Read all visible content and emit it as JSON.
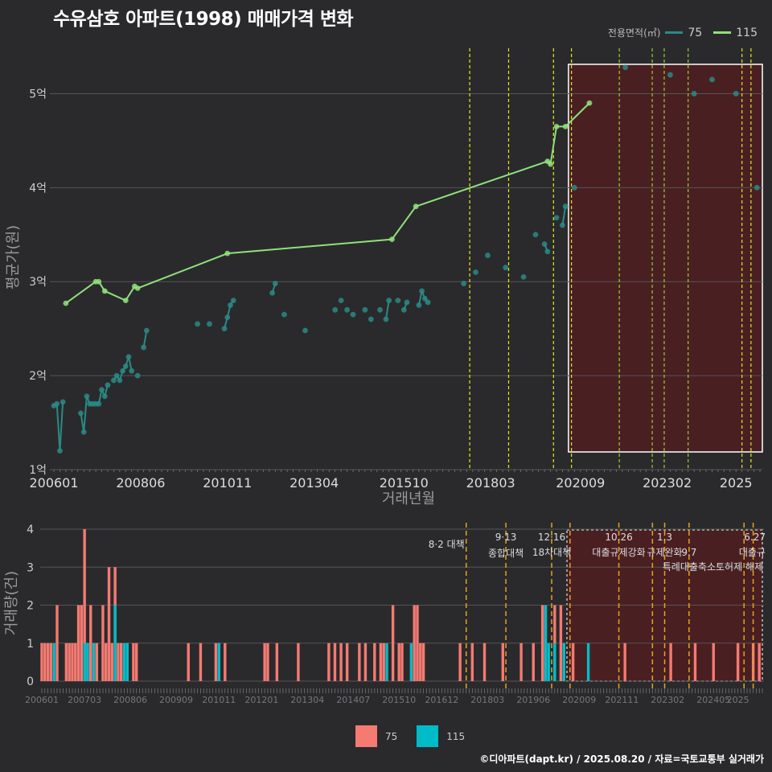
{
  "title": "수유삼호 아파트(1998) 매매가격 변화",
  "credit": "©디아파트(dapt.kr) / 2025.08.20 / 자료=국토교통부 실거래가",
  "colors": {
    "bg": "#2a2a2c",
    "grid": "#555557",
    "s75": "#2a8a86",
    "s115": "#90e07c",
    "bar75": "#f47a72",
    "bar115": "#00bcc8",
    "vline": "#e6e61f",
    "vline2": "#e6a21f",
    "highlight": "#4a1f22"
  },
  "legend_top": {
    "title": "전용면적(㎡)",
    "items": [
      "75",
      "115"
    ]
  },
  "legend_bottom": {
    "items": [
      "75",
      "115"
    ]
  },
  "chart_data": [
    {
      "type": "line",
      "xlabel": "거래년월",
      "ylabel": "평균가(원)",
      "x_ticks": [
        "200601",
        "200806",
        "201011",
        "201304",
        "201510",
        "201803",
        "202009",
        "202302",
        "2025"
      ],
      "y_ticks": [
        "1억",
        "2억",
        "3억",
        "4억",
        "5억"
      ],
      "ylim": [
        1.0,
        5.5
      ],
      "series": [
        {
          "name": "75",
          "points": [
            [
              "2006-01",
              1.68
            ],
            [
              "2006-02",
              1.7
            ],
            [
              "2006-03",
              1.2
            ],
            [
              "2006-04",
              1.72
            ],
            [
              "2006-10",
              1.6
            ],
            [
              "2006-11",
              1.4
            ],
            [
              "2006-12",
              1.78
            ],
            [
              "2007-01",
              1.7
            ],
            [
              "2007-02",
              1.7
            ],
            [
              "2007-03",
              1.7
            ],
            [
              "2007-04",
              1.7
            ],
            [
              "2007-05",
              1.85
            ],
            [
              "2007-06",
              1.78
            ],
            [
              "2007-07",
              1.9
            ],
            [
              "2007-09",
              1.95
            ],
            [
              "2007-10",
              2.0
            ],
            [
              "2007-11",
              1.95
            ],
            [
              "2007-12",
              2.05
            ],
            [
              "2008-01",
              2.1
            ],
            [
              "2008-02",
              2.2
            ],
            [
              "2008-03",
              2.05
            ],
            [
              "2008-05",
              2.0
            ],
            [
              "2008-07",
              2.3
            ],
            [
              "2008-08",
              2.48
            ],
            [
              "2010-01",
              2.55
            ],
            [
              "2010-05",
              2.55
            ],
            [
              "2010-10",
              2.5
            ],
            [
              "2010-11",
              2.62
            ],
            [
              "2010-12",
              2.75
            ],
            [
              "2011-01",
              2.8
            ],
            [
              "2012-02",
              2.88
            ],
            [
              "2012-03",
              2.98
            ],
            [
              "2012-06",
              2.65
            ],
            [
              "2013-01",
              2.48
            ],
            [
              "2013-11",
              2.7
            ],
            [
              "2014-01",
              2.8
            ],
            [
              "2014-03",
              2.7
            ],
            [
              "2014-05",
              2.65
            ],
            [
              "2014-09",
              2.7
            ],
            [
              "2014-11",
              2.6
            ],
            [
              "2015-02",
              2.7
            ],
            [
              "2015-04",
              2.6
            ],
            [
              "2015-05",
              2.8
            ],
            [
              "2015-08",
              2.8
            ],
            [
              "2015-10",
              2.7
            ],
            [
              "2015-11",
              2.78
            ],
            [
              "2016-03",
              2.75
            ],
            [
              "2016-04",
              2.9
            ],
            [
              "2016-05",
              2.82
            ],
            [
              "2016-06",
              2.78
            ],
            [
              "2017-06",
              2.98
            ],
            [
              "2017-10",
              3.1
            ],
            [
              "2018-02",
              3.28
            ],
            [
              "2018-08",
              3.15
            ],
            [
              "2019-02",
              3.05
            ],
            [
              "2019-06",
              3.5
            ],
            [
              "2019-09",
              3.4
            ],
            [
              "2019-10",
              3.32
            ],
            [
              "2020-01",
              3.68
            ],
            [
              "2020-03",
              3.6
            ],
            [
              "2020-04",
              3.8
            ],
            [
              "2020-07",
              4.0
            ],
            [
              "2021-12",
              5.28
            ],
            [
              "2023-03",
              5.2
            ],
            [
              "2023-11",
              5.0
            ],
            [
              "2024-05",
              5.15
            ],
            [
              "2025-01",
              5.0
            ],
            [
              "2025-08",
              4.0
            ]
          ]
        },
        {
          "name": "115",
          "points": [
            [
              "2006-05",
              2.77
            ],
            [
              "2007-03",
              3.0
            ],
            [
              "2007-04",
              3.0
            ],
            [
              "2007-06",
              2.9
            ],
            [
              "2008-01",
              2.8
            ],
            [
              "2008-04",
              2.95
            ],
            [
              "2008-05",
              2.93
            ],
            [
              "2010-11",
              3.3
            ],
            [
              "2015-06",
              3.45
            ],
            [
              "2016-02",
              3.8
            ],
            [
              "2019-10",
              4.28
            ],
            [
              "2019-11",
              4.25
            ],
            [
              "2020-01",
              4.65
            ],
            [
              "2020-04",
              4.65
            ],
            [
              "2020-12",
              4.9
            ]
          ]
        }
      ]
    },
    {
      "type": "bar",
      "ylabel": "거래량(건)",
      "x_ticks": [
        "200601",
        "200703",
        "200806",
        "200909",
        "201011",
        "201201",
        "201304",
        "201407",
        "201510",
        "201612",
        "201803",
        "201906",
        "202009",
        "202111",
        "202302",
        "202405",
        "2025"
      ],
      "y_ticks": [
        "0",
        "1",
        "2",
        "3",
        "4"
      ],
      "ylim": [
        0,
        4
      ],
      "series": [
        {
          "name": "75",
          "points": [
            [
              "2006-01",
              1
            ],
            [
              "2006-02",
              1
            ],
            [
              "2006-03",
              1
            ],
            [
              "2006-04",
              1
            ],
            [
              "2006-06",
              2
            ],
            [
              "2006-09",
              1
            ],
            [
              "2006-10",
              1
            ],
            [
              "2006-11",
              1
            ],
            [
              "2006-12",
              1
            ],
            [
              "2007-01",
              2
            ],
            [
              "2007-02",
              2
            ],
            [
              "2007-03",
              4
            ],
            [
              "2007-04",
              1
            ],
            [
              "2007-05",
              2
            ],
            [
              "2007-06",
              1
            ],
            [
              "2007-07",
              1
            ],
            [
              "2007-09",
              2
            ],
            [
              "2007-10",
              1
            ],
            [
              "2007-11",
              3
            ],
            [
              "2007-12",
              1
            ],
            [
              "2008-01",
              3
            ],
            [
              "2008-02",
              1
            ],
            [
              "2008-03",
              1
            ],
            [
              "2008-05",
              1
            ],
            [
              "2008-07",
              1
            ],
            [
              "2008-08",
              1
            ],
            [
              "2010-01",
              1
            ],
            [
              "2010-05",
              1
            ],
            [
              "2010-10",
              1
            ],
            [
              "2010-11",
              1
            ],
            [
              "2011-01",
              1
            ],
            [
              "2012-02",
              1
            ],
            [
              "2012-03",
              1
            ],
            [
              "2012-06",
              1
            ],
            [
              "2013-01",
              1
            ],
            [
              "2013-11",
              1
            ],
            [
              "2014-01",
              1
            ],
            [
              "2014-03",
              1
            ],
            [
              "2014-05",
              1
            ],
            [
              "2014-09",
              1
            ],
            [
              "2014-11",
              1
            ],
            [
              "2015-02",
              1
            ],
            [
              "2015-04",
              1
            ],
            [
              "2015-05",
              1
            ],
            [
              "2015-08",
              2
            ],
            [
              "2015-10",
              1
            ],
            [
              "2015-11",
              1
            ],
            [
              "2016-03",
              2
            ],
            [
              "2016-04",
              2
            ],
            [
              "2016-05",
              1
            ],
            [
              "2016-06",
              1
            ],
            [
              "2017-06",
              1
            ],
            [
              "2017-10",
              1
            ],
            [
              "2018-02",
              1
            ],
            [
              "2018-08",
              1
            ],
            [
              "2019-02",
              1
            ],
            [
              "2019-06",
              1
            ],
            [
              "2019-09",
              2
            ],
            [
              "2019-10",
              2
            ],
            [
              "2020-01",
              2
            ],
            [
              "2020-03",
              2
            ],
            [
              "2020-04",
              1
            ],
            [
              "2020-07",
              1
            ],
            [
              "2021-12",
              1
            ],
            [
              "2023-03",
              1
            ],
            [
              "2023-11",
              1
            ],
            [
              "2024-05",
              1
            ],
            [
              "2025-01",
              1
            ],
            [
              "2025-06",
              1
            ],
            [
              "2025-08",
              1
            ]
          ]
        },
        {
          "name": "115",
          "points": [
            [
              "2006-05",
              1
            ],
            [
              "2007-03",
              1
            ],
            [
              "2007-04",
              1
            ],
            [
              "2007-06",
              1
            ],
            [
              "2008-01",
              2
            ],
            [
              "2008-04",
              1
            ],
            [
              "2008-05",
              1
            ],
            [
              "2010-11",
              1
            ],
            [
              "2015-06",
              1
            ],
            [
              "2016-02",
              1
            ],
            [
              "2019-10",
              2
            ],
            [
              "2019-11",
              1
            ],
            [
              "2020-01",
              1
            ],
            [
              "2020-04",
              1
            ],
            [
              "2020-12",
              1
            ]
          ]
        }
      ]
    }
  ],
  "events": [
    {
      "date": "2017-08",
      "label": "8·2 대책",
      "sub": ""
    },
    {
      "date": "2018-09",
      "label": "9·13",
      "sub": "종합대책"
    },
    {
      "date": "2019-12",
      "label": "12·16",
      "sub": "18차대책"
    },
    {
      "date": "2020-06",
      "label": "",
      "sub": ""
    },
    {
      "date": "2021-10",
      "label": "10.26",
      "sub": "대출규제강화"
    },
    {
      "date": "2022-09",
      "label": "",
      "sub": ""
    },
    {
      "date": "2023-01",
      "label": "1.3",
      "sub": "규제완화"
    },
    {
      "date": "2023-09",
      "label": "9.7",
      "sub": "특례대출축소"
    },
    {
      "date": "2025-03",
      "label": "",
      "sub": "토허제 해제"
    },
    {
      "date": "2025-06",
      "label": "6.27",
      "sub": "대출규"
    }
  ],
  "highlight_start": "2020-05"
}
